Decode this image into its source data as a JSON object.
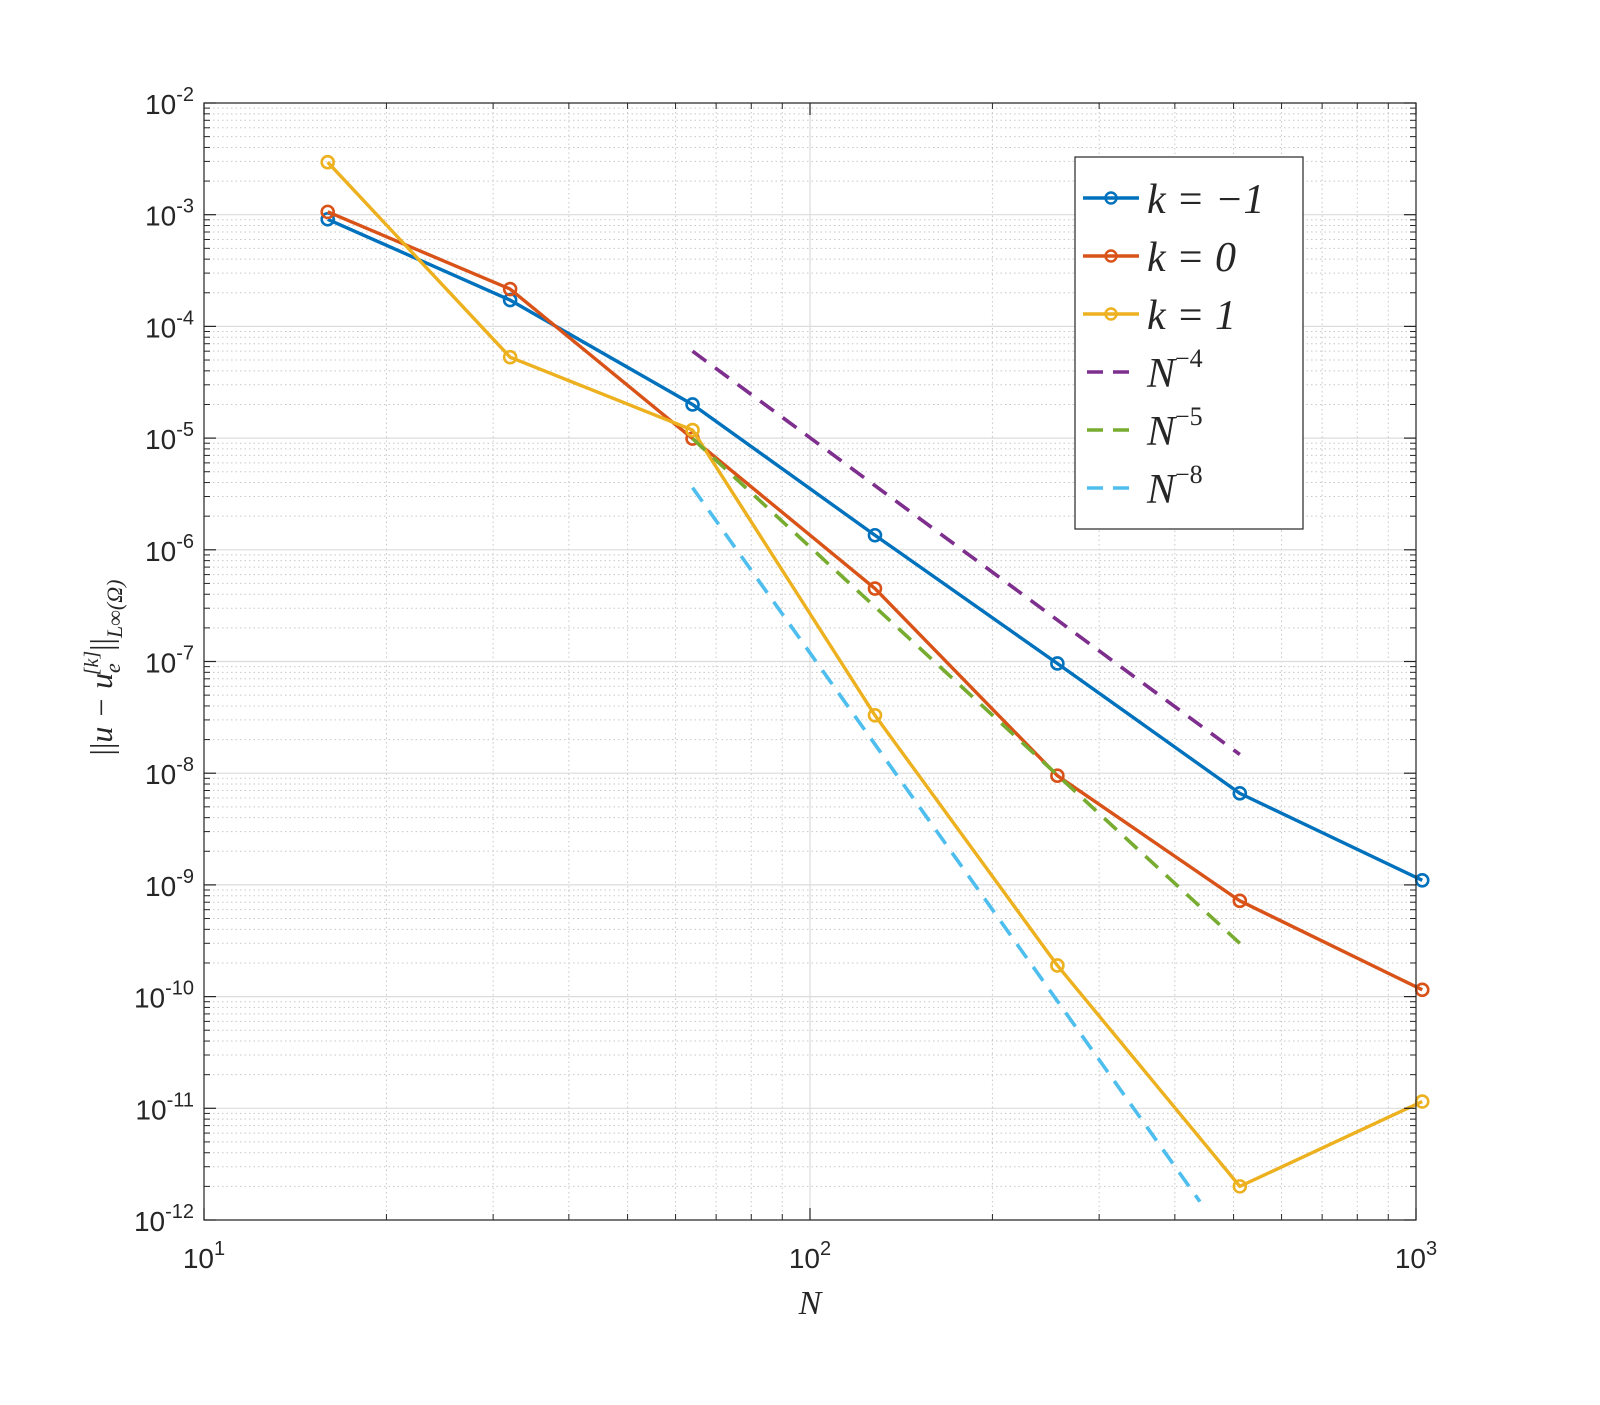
{
  "chart_data": {
    "type": "line",
    "xscale": "log",
    "yscale": "log",
    "xlim": [
      10,
      1000
    ],
    "ylim": [
      1e-12,
      0.01
    ],
    "grid": true,
    "minor_grid": true,
    "xlabel": "N",
    "ylabel": "||u − u_e^[k]||_L∞(Ω)",
    "xticks": [
      {
        "value": 10,
        "base": "10",
        "exp": "1"
      },
      {
        "value": 100,
        "base": "10",
        "exp": "2"
      },
      {
        "value": 1000,
        "base": "10",
        "exp": "3"
      }
    ],
    "yticks": [
      {
        "value": 0.01,
        "base": "10",
        "exp": "-2"
      },
      {
        "value": 0.001,
        "base": "10",
        "exp": "-3"
      },
      {
        "value": 0.0001,
        "base": "10",
        "exp": "-4"
      },
      {
        "value": 1e-05,
        "base": "10",
        "exp": "-5"
      },
      {
        "value": 1e-06,
        "base": "10",
        "exp": "-6"
      },
      {
        "value": 1e-07,
        "base": "10",
        "exp": "-7"
      },
      {
        "value": 1e-08,
        "base": "10",
        "exp": "-8"
      },
      {
        "value": 1e-09,
        "base": "10",
        "exp": "-9"
      },
      {
        "value": 1e-10,
        "base": "10",
        "exp": "-10"
      },
      {
        "value": 1e-11,
        "base": "10",
        "exp": "-11"
      },
      {
        "value": 1e-12,
        "base": "10",
        "exp": "-12"
      }
    ],
    "legend_position": "top-right",
    "series": [
      {
        "name": "k = −1",
        "legend_main": "k = −1",
        "legend_exp": "",
        "color": "#0072BD",
        "style": "solid",
        "marker": "circle",
        "x": [
          16,
          32,
          64,
          128,
          256,
          512,
          1024
        ],
        "y": [
          0.00091,
          0.000172,
          2e-05,
          1.35e-06,
          9.6e-08,
          6.6e-09,
          1.1e-09
        ]
      },
      {
        "name": "k = 0",
        "legend_main": "k = 0",
        "legend_exp": "",
        "color": "#D95319",
        "style": "solid",
        "marker": "circle",
        "x": [
          16,
          32,
          64,
          128,
          256,
          512,
          1024
        ],
        "y": [
          0.00106,
          0.000216,
          9.9e-06,
          4.5e-07,
          9.5e-09,
          7.2e-10,
          1.15e-10
        ]
      },
      {
        "name": "k = 1",
        "legend_main": "k = 1",
        "legend_exp": "",
        "color": "#EDB120",
        "style": "solid",
        "marker": "circle",
        "x": [
          16,
          32,
          64,
          128,
          256,
          512,
          1024
        ],
        "y": [
          0.00295,
          5.3e-05,
          1.18e-05,
          3.3e-08,
          1.9e-10,
          2e-12,
          1.15e-11
        ]
      },
      {
        "name": "N^−4",
        "legend_main": "N",
        "legend_exp": "−4",
        "color": "#7E2F8E",
        "style": "dashed",
        "marker": "none",
        "x": [
          64,
          512
        ],
        "y": [
          6e-05,
          1.47e-08
        ]
      },
      {
        "name": "N^−5",
        "legend_main": "N",
        "legend_exp": "−5",
        "color": "#77AC30",
        "style": "dashed",
        "marker": "none",
        "x": [
          64,
          512
        ],
        "y": [
          9.9e-06,
          3e-10
        ]
      },
      {
        "name": "N^−8",
        "legend_main": "N",
        "legend_exp": "−8",
        "color": "#4DBEEE",
        "style": "dashed",
        "marker": "none",
        "x": [
          64,
          440
        ],
        "y": [
          3.6e-06,
          1.46e-12
        ]
      }
    ]
  }
}
